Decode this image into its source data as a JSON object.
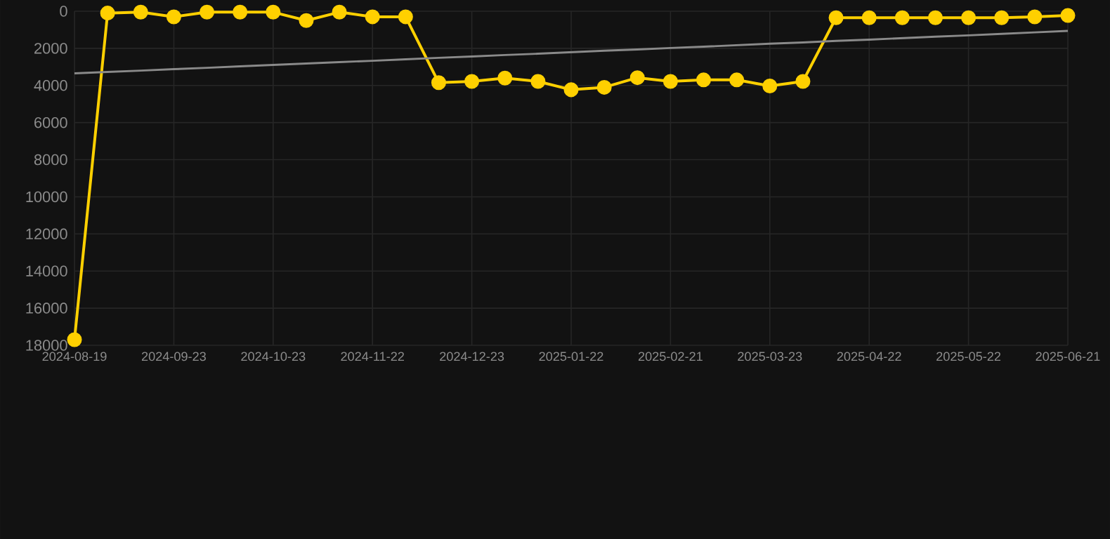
{
  "chart_data": {
    "type": "line",
    "categories": [
      "2024-08-19",
      null,
      null,
      "2024-09-23",
      null,
      null,
      "2024-10-23",
      null,
      null,
      "2024-11-22",
      null,
      null,
      "2024-12-23",
      null,
      null,
      "2025-01-22",
      null,
      null,
      "2025-02-21",
      null,
      null,
      "2025-03-23",
      null,
      null,
      "2025-04-22",
      null,
      null,
      "2025-05-22",
      null,
      null,
      "2025-06-21"
    ],
    "series": [
      {
        "color": "#ffd000",
        "values": [
          17700,
          100,
          50,
          300,
          50,
          50,
          50,
          500,
          50,
          300,
          300,
          3850,
          3780,
          3600,
          3780,
          4230,
          4100,
          3580,
          3780,
          3700,
          3700,
          4030,
          3780,
          350,
          350,
          350,
          350,
          350,
          350,
          300,
          230
        ]
      },
      {
        "type": "line",
        "color": "#8a8a8a",
        "marker": "none",
        "values": [
          3350,
          3270,
          3200,
          3120,
          3050,
          2970,
          2890,
          2820,
          2740,
          2670,
          2590,
          2510,
          2440,
          2360,
          2290,
          2210,
          2130,
          2060,
          1980,
          1910,
          1830,
          1750,
          1680,
          1600,
          1530,
          1450,
          1370,
          1300,
          1220,
          1140,
          1060
        ]
      }
    ],
    "ylim": [
      18000,
      0
    ],
    "yticks": [
      0,
      2000,
      4000,
      6000,
      8000,
      10000,
      12000,
      14000,
      16000,
      18000
    ],
    "grid": true,
    "marker": "circle",
    "line_style": "solid"
  }
}
